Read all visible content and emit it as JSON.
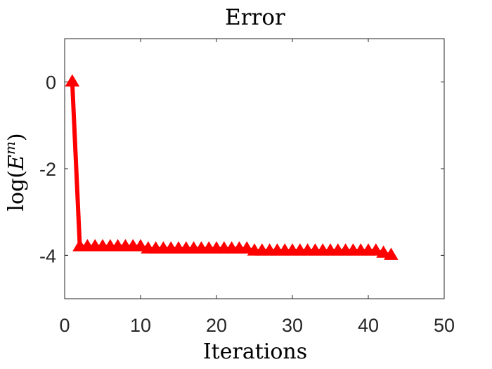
{
  "chart_data": {
    "type": "line",
    "title": "Error",
    "xlabel": "Iterations",
    "ylabel": {
      "prefix": "log(",
      "base": "E",
      "superscript": "m",
      "suffix": ")"
    },
    "xlim": [
      0,
      50
    ],
    "ylim": [
      -5,
      1
    ],
    "xticks": [
      0,
      10,
      20,
      30,
      40,
      50
    ],
    "yticks": [
      0,
      -2,
      -4
    ],
    "xtick_labels": [
      "0",
      "10",
      "20",
      "30",
      "40",
      "50"
    ],
    "ytick_labels": [
      "0",
      "-2",
      "-4"
    ],
    "grid": false,
    "series": [
      {
        "color": "#ff0000",
        "marker": "triangle-up",
        "x": [
          1,
          2,
          3,
          4,
          5,
          6,
          7,
          8,
          9,
          10,
          11,
          12,
          13,
          14,
          15,
          16,
          17,
          18,
          19,
          20,
          21,
          22,
          23,
          24,
          25,
          26,
          27,
          28,
          29,
          30,
          31,
          32,
          33,
          34,
          35,
          36,
          37,
          38,
          39,
          40,
          41,
          42,
          43
        ],
        "y": [
          0.0,
          -3.8,
          -3.8,
          -3.8,
          -3.8,
          -3.8,
          -3.8,
          -3.8,
          -3.8,
          -3.8,
          -3.85,
          -3.85,
          -3.85,
          -3.85,
          -3.85,
          -3.85,
          -3.85,
          -3.85,
          -3.85,
          -3.85,
          -3.85,
          -3.85,
          -3.85,
          -3.85,
          -3.9,
          -3.9,
          -3.9,
          -3.9,
          -3.9,
          -3.9,
          -3.9,
          -3.9,
          -3.9,
          -3.9,
          -3.9,
          -3.9,
          -3.9,
          -3.9,
          -3.9,
          -3.9,
          -3.9,
          -3.95,
          -4.0
        ]
      }
    ]
  }
}
